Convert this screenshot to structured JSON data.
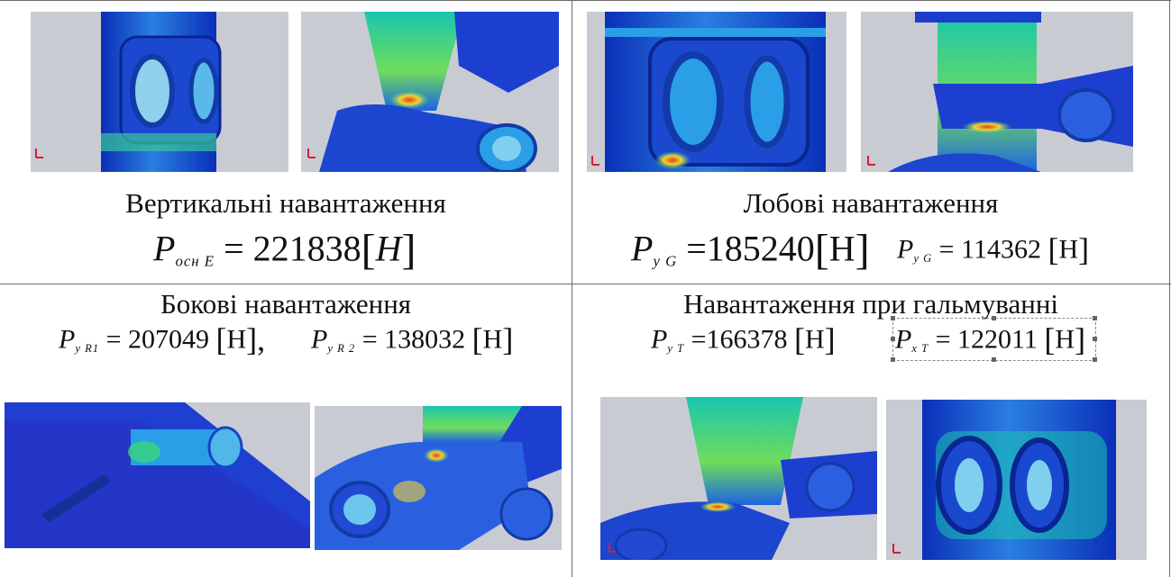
{
  "cells": [
    {
      "caption": "Вертикальні навантаження",
      "formulas": [
        {
          "symbol": "P",
          "subscript": "осн E",
          "eq": "=",
          "value": "221838",
          "lb": "[",
          "unit": "H",
          "rb": "]"
        }
      ],
      "images": [
        "vertical-load-detail-1",
        "vertical-load-detail-2"
      ]
    },
    {
      "caption": "Лобові навантаження",
      "formulas": [
        {
          "symbol": "P",
          "subscript": "y G",
          "eq": "=",
          "value": "185240",
          "lb": "[",
          "unit": "Н",
          "rb": "]"
        },
        {
          "symbol": "P",
          "subscript": "y G",
          "eq": "=",
          "value": "114362",
          "lb": "[",
          "unit": "Н",
          "rb": "]"
        }
      ],
      "images": [
        "frontal-load-detail-1",
        "frontal-load-detail-2"
      ]
    },
    {
      "caption": "Бокові навантаження",
      "formulas": [
        {
          "symbol": "P",
          "subscript": "y R1",
          "eq": "=",
          "value": "207049",
          "lb": "[",
          "unit": "Н",
          "rb": "],"
        },
        {
          "symbol": "P",
          "subscript": "y R 2",
          "eq": "=",
          "value": "138032",
          "lb": "[",
          "unit": "Н",
          "rb": "]"
        }
      ],
      "images": [
        "side-load-detail-1",
        "side-load-detail-2"
      ]
    },
    {
      "caption": "Навантаження при гальмуванні",
      "formulas": [
        {
          "symbol": "P",
          "subscript": "y T",
          "eq": "=",
          "value": "166378",
          "lb": "[",
          "unit": "Н",
          "rb": "]"
        },
        {
          "symbol": "P",
          "subscript": "x T",
          "eq": "=",
          "value": "122011",
          "lb": "[",
          "unit": "Н",
          "rb": "]"
        }
      ],
      "images": [
        "braking-load-detail-1",
        "braking-load-detail-2"
      ]
    }
  ],
  "colors": {
    "fea_background": "#c9cbd3",
    "stress_low": "#1f3fd0",
    "stress_mid": "#19c6b0",
    "stress_high": "#d84a14",
    "grid": "#6a6a6a"
  }
}
